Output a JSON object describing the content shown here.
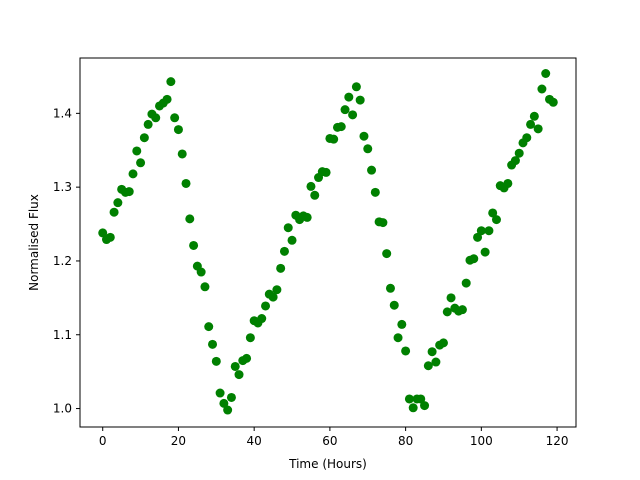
{
  "chart_data": {
    "type": "scatter",
    "title": "",
    "xlabel": "Time (Hours)",
    "ylabel": "Normalised Flux",
    "xlim": [
      -6,
      125
    ],
    "ylim": [
      0.975,
      1.475
    ],
    "xticks": [
      0,
      20,
      40,
      60,
      80,
      100,
      120
    ],
    "yticks": [
      1.0,
      1.1,
      1.2,
      1.3,
      1.4
    ],
    "xtick_labels": [
      "0",
      "20",
      "40",
      "60",
      "80",
      "100",
      "120"
    ],
    "ytick_labels": [
      "1.0",
      "1.1",
      "1.2",
      "1.3",
      "1.4"
    ],
    "grid": false,
    "marker_color": "#008000",
    "series": [
      {
        "x": [
          0,
          1,
          2,
          3,
          4,
          5,
          6,
          7,
          8,
          9,
          10,
          11,
          12,
          13,
          14,
          15,
          16,
          17,
          18,
          19,
          20,
          21,
          22,
          23,
          24,
          25,
          26,
          27,
          28,
          29,
          30,
          31,
          32,
          33,
          34,
          35,
          36,
          37,
          38,
          39,
          40,
          41,
          42,
          43,
          44,
          45,
          46,
          47,
          48,
          49,
          50,
          51,
          52,
          53,
          54,
          55,
          56,
          57,
          58,
          59,
          60,
          61,
          62,
          63,
          64,
          65,
          66,
          67,
          68,
          69,
          70,
          71,
          72,
          73,
          74,
          75,
          76,
          77,
          78,
          79,
          80,
          81,
          82,
          83,
          84,
          85,
          86,
          87,
          88,
          89,
          90,
          91,
          92,
          93,
          94,
          95,
          96,
          97,
          98,
          99,
          100,
          101,
          102,
          103,
          104,
          105,
          106,
          107,
          108,
          109,
          110,
          111,
          112,
          113,
          114,
          115,
          116,
          117,
          118,
          119
        ],
        "y": [
          1.238,
          1.229,
          1.232,
          1.266,
          1.279,
          1.297,
          1.293,
          1.294,
          1.318,
          1.349,
          1.333,
          1.367,
          1.385,
          1.399,
          1.394,
          1.41,
          1.414,
          1.419,
          1.443,
          1.394,
          1.378,
          1.345,
          1.305,
          1.257,
          1.221,
          1.193,
          1.185,
          1.165,
          1.111,
          1.087,
          1.064,
          1.021,
          1.007,
          0.998,
          1.015,
          1.057,
          1.046,
          1.065,
          1.068,
          1.096,
          1.119,
          1.116,
          1.122,
          1.139,
          1.155,
          1.151,
          1.161,
          1.19,
          1.213,
          1.245,
          1.228,
          1.262,
          1.256,
          1.261,
          1.259,
          1.301,
          1.289,
          1.313,
          1.321,
          1.32,
          1.366,
          1.365,
          1.381,
          1.382,
          1.405,
          1.422,
          1.398,
          1.436,
          1.418,
          1.369,
          1.352,
          1.323,
          1.293,
          1.253,
          1.252,
          1.21,
          1.163,
          1.14,
          1.096,
          1.114,
          1.078,
          1.013,
          1.001,
          1.013,
          1.013,
          1.004,
          1.058,
          1.077,
          1.063,
          1.086,
          1.089,
          1.131,
          1.15,
          1.136,
          1.132,
          1.134,
          1.17,
          1.201,
          1.203,
          1.232,
          1.241,
          1.212,
          1.241,
          1.265,
          1.256,
          1.302,
          1.299,
          1.305,
          1.33,
          1.336,
          1.346,
          1.36,
          1.367,
          1.385,
          1.396,
          1.379,
          1.433,
          1.454,
          1.419,
          1.415
        ]
      }
    ]
  }
}
